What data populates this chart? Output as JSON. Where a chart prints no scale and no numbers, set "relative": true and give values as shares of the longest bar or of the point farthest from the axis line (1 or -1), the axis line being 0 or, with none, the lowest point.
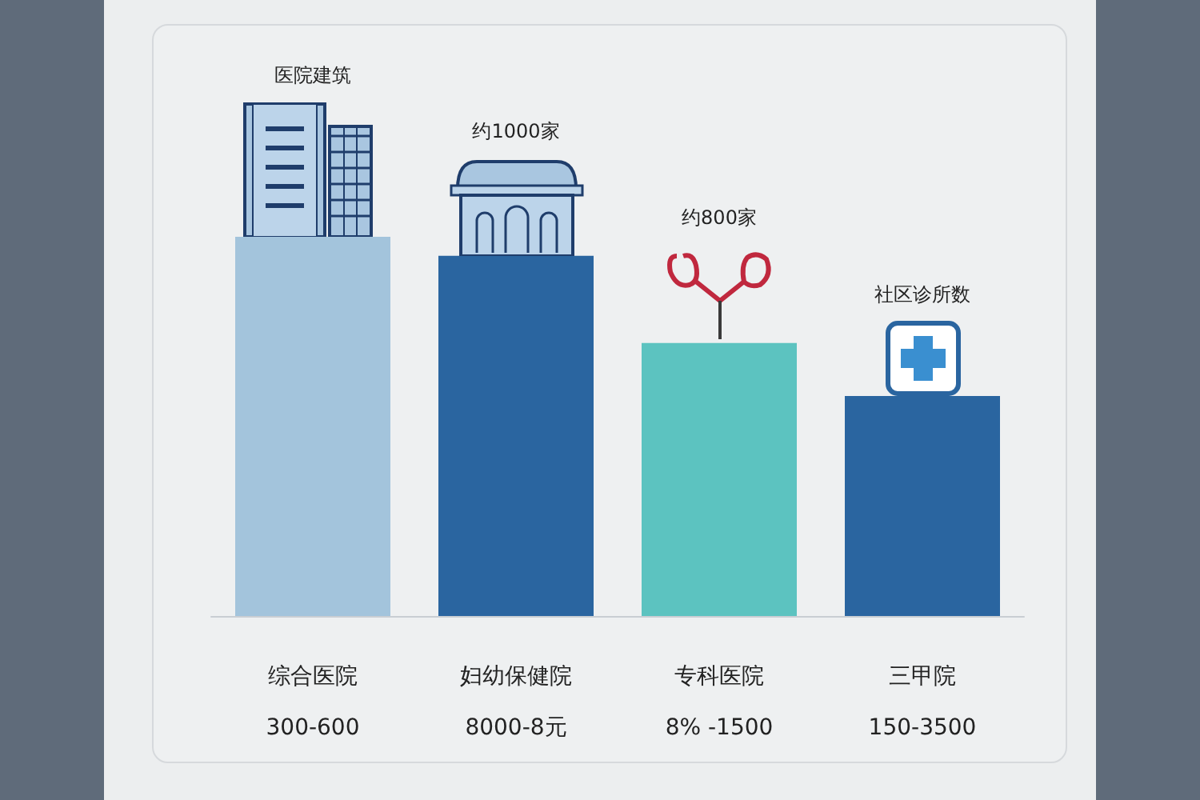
{
  "chart_data": {
    "type": "bar",
    "relative": true,
    "categories": [
      "综合医院\n300-600",
      "妇幼保健院\n8000-8元",
      "专科医院\n8% -1500",
      "三甲院\n150-3500"
    ],
    "values": [
      1,
      0.95,
      0.72,
      0.58
    ],
    "colors": [
      "#a3c4dc",
      "#2a65a0",
      "#5cc3c0",
      "#2a65a0"
    ],
    "annotations": [
      "医院建筑",
      "约1000家",
      "约800家",
      "社区诊所数"
    ]
  }
}
